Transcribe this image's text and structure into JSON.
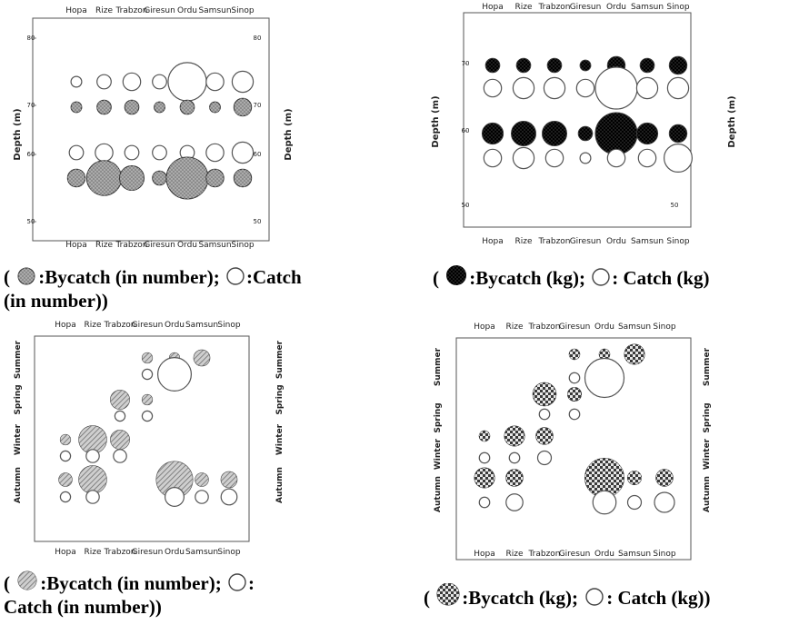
{
  "chart_data": [
    {
      "id": "panel-a",
      "type": "bubble",
      "categories": [
        "Hopa",
        "Rize",
        "Trabzon",
        "Giresun",
        "Ordu",
        "Samsun",
        "Sinop"
      ],
      "ylabel": "Depth (m)",
      "ylabel_right": "Depth (m)",
      "yticks": [
        "80",
        "70",
        "60",
        "50"
      ],
      "series": [
        {
          "name": "Catch (in number)",
          "row": "upper",
          "sizes": [
            1,
            2,
            3,
            2,
            9,
            3,
            4
          ]
        },
        {
          "name": "Bycatch (in number)",
          "row": "upper",
          "sizes": [
            1,
            2,
            2,
            1,
            2,
            1,
            3
          ]
        },
        {
          "name": "Catch (in number)",
          "row": "lower",
          "sizes": [
            2,
            3,
            2,
            2,
            2,
            3,
            4
          ]
        },
        {
          "name": "Bycatch (in number)",
          "row": "lower",
          "sizes": [
            3,
            8,
            5,
            2,
            10,
            3,
            3
          ]
        }
      ],
      "legend": {
        "open": "(",
        "bycatch": ":Bycatch (in number);",
        "catch": ":Catch",
        "catch_cont": "(in number))"
      }
    },
    {
      "id": "panel-b",
      "type": "bubble",
      "categories": [
        "Hopa",
        "Rize",
        "Trabzon",
        "Giresun",
        "Ordu",
        "Samsun",
        "Sinop"
      ],
      "ylabel": "Depth (m)",
      "ylabel_right": "Depth (m)",
      "yticks": [
        "70",
        "60",
        "50"
      ],
      "series": [
        {
          "name": "Bycatch (kg)",
          "row": "upper",
          "sizes": [
            2,
            2,
            2,
            1,
            3,
            2,
            3
          ]
        },
        {
          "name": "Catch (kg)",
          "row": "upper",
          "sizes": [
            3,
            4,
            4,
            3,
            10,
            4,
            4
          ]
        },
        {
          "name": "Bycatch (kg)",
          "row": "lower",
          "sizes": [
            4,
            5,
            5,
            2,
            10,
            4,
            3
          ]
        },
        {
          "name": "Catch (kg)",
          "row": "lower",
          "sizes": [
            3,
            4,
            3,
            1,
            3,
            3,
            6
          ]
        }
      ],
      "legend": {
        "open": "(",
        "bycatch": ":Bycatch (kg);",
        "catch": ": Catch (kg)"
      }
    },
    {
      "id": "panel-c",
      "type": "bubble",
      "categories": [
        "Hopa",
        "Rize",
        "Trabzon",
        "Giresun",
        "Ordu",
        "Samsun",
        "Sinop"
      ],
      "seasons": [
        "Summer",
        "Spring",
        "Winter",
        "Autumn"
      ],
      "series": [
        {
          "name": "Bycatch (in number)",
          "season": "Summer",
          "sizes": [
            0,
            0,
            0,
            1,
            1,
            3,
            0
          ]
        },
        {
          "name": "Catch (in number)",
          "season": "Summer",
          "sizes": [
            0,
            0,
            0,
            1,
            9,
            0,
            0
          ]
        },
        {
          "name": "Bycatch (in number)",
          "season": "Spring",
          "sizes": [
            0,
            0,
            4,
            1,
            0,
            0,
            0
          ]
        },
        {
          "name": "Catch (in number)",
          "season": "Spring",
          "sizes": [
            0,
            0,
            1,
            1,
            0,
            0,
            0
          ]
        },
        {
          "name": "Bycatch (in number)",
          "season": "Winter",
          "sizes": [
            1,
            7,
            4,
            0,
            0,
            0,
            0
          ]
        },
        {
          "name": "Catch (in number)",
          "season": "Winter",
          "sizes": [
            1,
            2,
            2,
            0,
            0,
            0,
            0
          ]
        },
        {
          "name": "Bycatch (in number)",
          "season": "Autumn",
          "sizes": [
            2,
            7,
            0,
            0,
            10,
            2,
            3
          ]
        },
        {
          "name": "Catch (in number)",
          "season": "Autumn",
          "sizes": [
            1,
            2,
            0,
            0,
            4,
            2,
            3
          ]
        }
      ],
      "legend": {
        "open": "(",
        "bycatch": ":Bycatch (in number);",
        "catch": ":",
        "catch_cont": "Catch  (in number))"
      }
    },
    {
      "id": "panel-d",
      "type": "bubble",
      "categories": [
        "Hopa",
        "Rize",
        "Trabzon",
        "Giresun",
        "Ordu",
        "Samsun",
        "Sinop"
      ],
      "seasons": [
        "Summer",
        "Spring",
        "Winter",
        "Autumn"
      ],
      "series": [
        {
          "name": "Bycatch (kg)",
          "season": "Summer",
          "sizes": [
            0,
            0,
            0,
            1,
            1,
            4,
            0
          ]
        },
        {
          "name": "Catch (kg)",
          "season": "Summer",
          "sizes": [
            0,
            0,
            0,
            1,
            10,
            0,
            0
          ]
        },
        {
          "name": "Bycatch (kg)",
          "season": "Spring",
          "sizes": [
            0,
            0,
            5,
            2,
            0,
            0,
            0
          ]
        },
        {
          "name": "Catch (kg)",
          "season": "Spring",
          "sizes": [
            0,
            0,
            1,
            1,
            0,
            0,
            0
          ]
        },
        {
          "name": "Bycatch (kg)",
          "season": "Winter",
          "sizes": [
            1,
            4,
            3,
            0,
            0,
            0,
            0
          ]
        },
        {
          "name": "Catch (kg)",
          "season": "Winter",
          "sizes": [
            1,
            1,
            2,
            0,
            0,
            0,
            0
          ]
        },
        {
          "name": "Bycatch (kg)",
          "season": "Autumn",
          "sizes": [
            4,
            3,
            0,
            0,
            10,
            2,
            3
          ]
        },
        {
          "name": "Catch (kg)",
          "season": "Autumn",
          "sizes": [
            1,
            3,
            0,
            0,
            5,
            2,
            4
          ]
        }
      ],
      "legend": {
        "open": "(",
        "bycatch": ":Bycatch (kg);",
        "catch": ": Catch (kg))"
      }
    }
  ],
  "colors": {
    "bycatch_number": "#8c8c8c",
    "bycatch_kg": "#000000",
    "bycatch_season_number": "#a9a9a9",
    "bycatch_season_kg": "#3a3a3a",
    "catch": "#ffffff",
    "axis": "#555555"
  }
}
